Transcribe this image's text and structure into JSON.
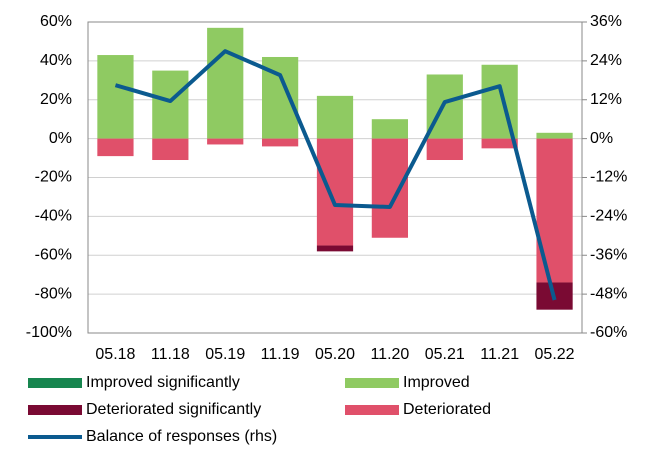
{
  "chart_data": {
    "type": "bar",
    "stacked": true,
    "categories": [
      "05.18",
      "11.18",
      "05.19",
      "11.19",
      "05.20",
      "11.20",
      "05.21",
      "11.21",
      "05.22"
    ],
    "series": [
      {
        "name": "Improved significantly",
        "color": "#17864f",
        "values": [
          0,
          0,
          0,
          0,
          0,
          0,
          0,
          0,
          0
        ]
      },
      {
        "name": "Improved",
        "color": "#8fca62",
        "values": [
          43,
          35,
          57,
          42,
          22,
          10,
          33,
          38,
          3
        ]
      },
      {
        "name": "Deteriorated significantly",
        "color": "#7a0a33",
        "values": [
          0,
          0,
          0,
          0,
          -3,
          0,
          0,
          0,
          -14
        ]
      },
      {
        "name": "Deteriorated",
        "color": "#e0506a",
        "values": [
          -9,
          -11,
          -3,
          -4,
          -55,
          -51,
          -11,
          -5,
          -74
        ]
      },
      {
        "name": "Balance of responses (rhs)",
        "color": "#0b5a8f",
        "type": "line",
        "axis": "y2",
        "values": [
          16.5,
          11.6,
          27,
          19.6,
          -20.5,
          -21.1,
          11.3,
          16.2,
          -49.8
        ]
      }
    ],
    "ylim": [
      -100,
      60
    ],
    "yticks": [
      {
        "value": -100,
        "label": "-100%"
      },
      {
        "value": -80,
        "label": "-80%"
      },
      {
        "value": -60,
        "label": "-60%"
      },
      {
        "value": -40,
        "label": "-40%"
      },
      {
        "value": -20,
        "label": "-20%"
      },
      {
        "value": 0,
        "label": "0%"
      },
      {
        "value": 20,
        "label": "20%"
      },
      {
        "value": 40,
        "label": "40%"
      },
      {
        "value": 60,
        "label": "60%"
      }
    ],
    "y2lim": [
      -60,
      36
    ],
    "y2ticks": [
      {
        "value": -60,
        "label": "-60%"
      },
      {
        "value": -48,
        "label": "-48%"
      },
      {
        "value": -36,
        "label": "-36%"
      },
      {
        "value": -24,
        "label": "-24%"
      },
      {
        "value": -12,
        "label": "-12%"
      },
      {
        "value": 0,
        "label": "0%"
      },
      {
        "value": 12,
        "label": "12%"
      },
      {
        "value": 24,
        "label": "24%"
      },
      {
        "value": 36,
        "label": "36%"
      }
    ],
    "grid": true,
    "legend": "bottom"
  }
}
